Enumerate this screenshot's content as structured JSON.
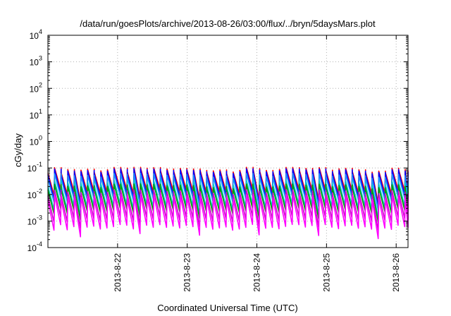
{
  "chart_data": {
    "type": "line",
    "title": "/data/run/goesPlots/archive/2013-08-26/03:00/flux/../bryn/5daysMars.plot",
    "xlabel": "Coordinated Universal Time (UTC)",
    "ylabel": "cGy/day",
    "y_scale": "log",
    "ylim_exp": [
      -4,
      4
    ],
    "y_tick_exponents": [
      -4,
      -3,
      -2,
      -1,
      0,
      1,
      2,
      3,
      4
    ],
    "y_tick_base": "10",
    "x_unit": "days",
    "xlim_days": [
      21.0,
      26.17
    ],
    "x_ticks": [
      {
        "day": 22,
        "label": "2013-8-22"
      },
      {
        "day": 23,
        "label": "2013-8-23"
      },
      {
        "day": 24,
        "label": "2013-8-24"
      },
      {
        "day": 25,
        "label": "2013-8-25"
      },
      {
        "day": 26,
        "label": "2013-8-26"
      }
    ],
    "grid": true,
    "sawtooth_period_days": 0.095,
    "series": [
      {
        "color": "#ff0000",
        "peak": 0.085,
        "trough": 0.013
      },
      {
        "color": "#0000ff",
        "peak": 0.075,
        "trough": 0.009
      },
      {
        "color": "#1e90ff",
        "peak": 0.05,
        "trough": 0.007
      },
      {
        "color": "#00c8c8",
        "peak": 0.028,
        "trough": 0.0035
      },
      {
        "color": "#00a000",
        "peak": 0.02,
        "trough": 0.0025
      },
      {
        "color": "#cc00cc",
        "peak": 0.012,
        "trough": 0.0012
      },
      {
        "color": "#ff00ff",
        "peak": 0.008,
        "trough": 0.0006
      }
    ]
  }
}
